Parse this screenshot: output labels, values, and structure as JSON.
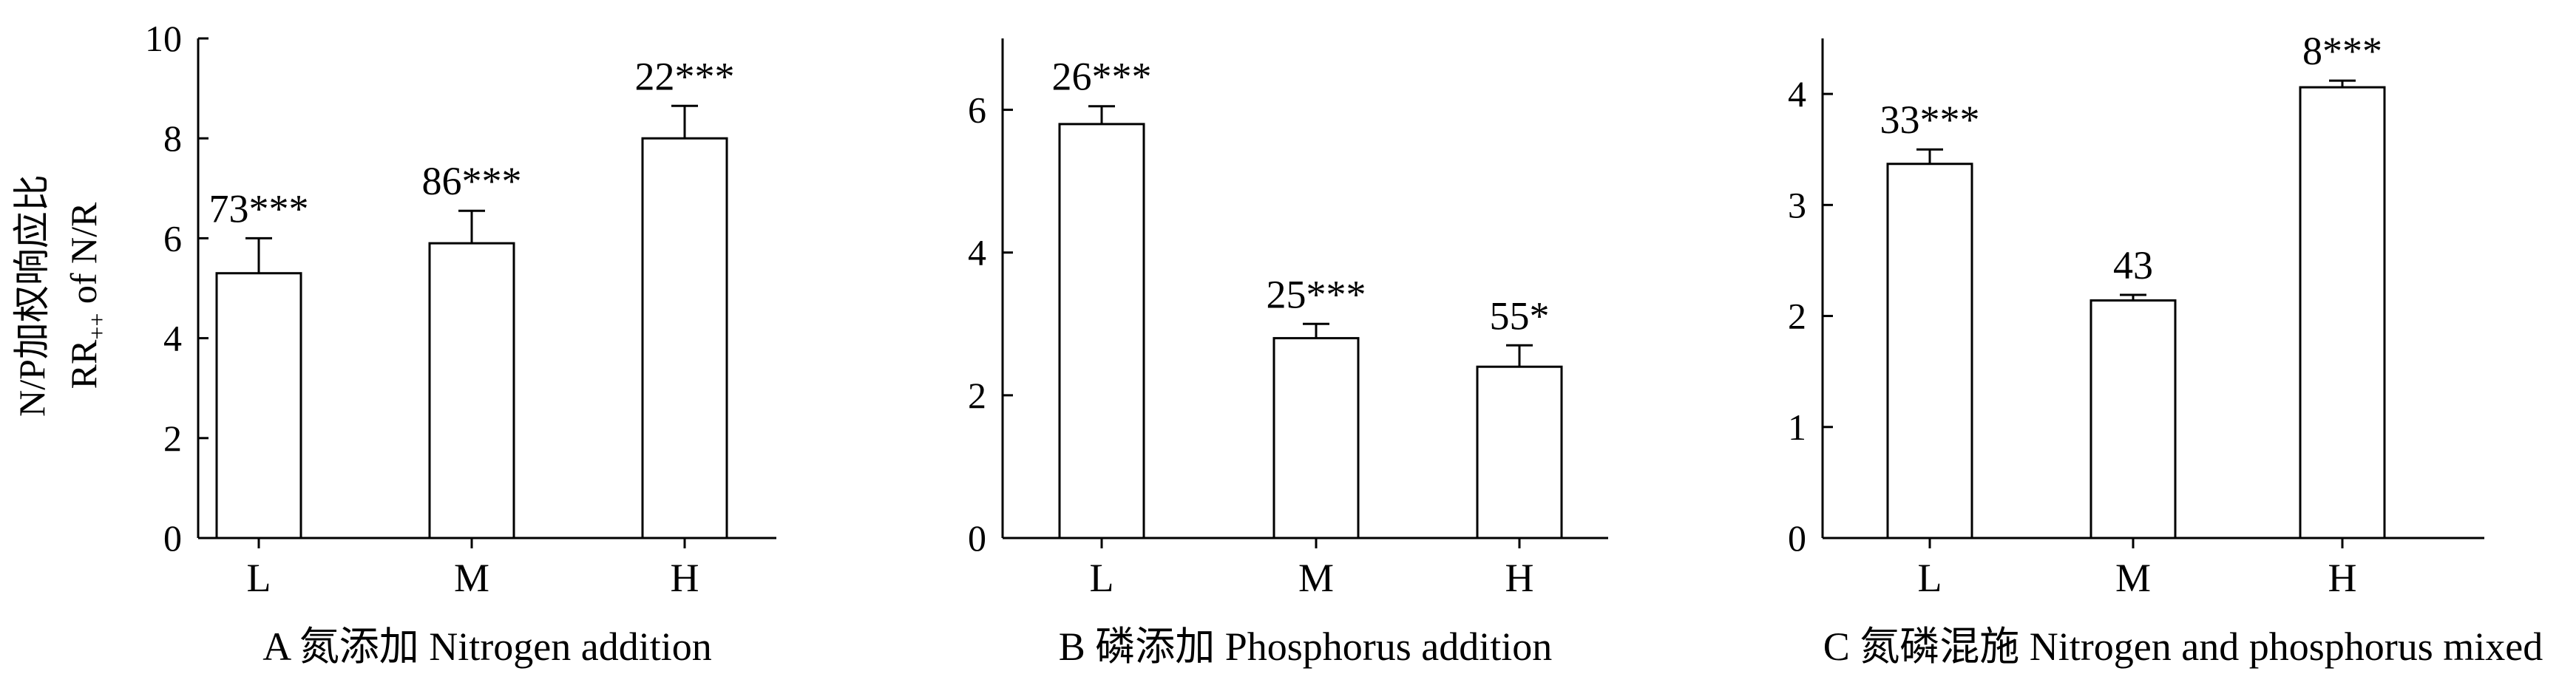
{
  "ylabel_cn": "N/P加权响应比",
  "ylabel_en": "RR++ of N/R",
  "chart_data": [
    {
      "type": "bar",
      "categories": [
        "L",
        "M",
        "H"
      ],
      "values": [
        5.3,
        5.9,
        8.0
      ],
      "errors": [
        0.7,
        0.65,
        0.65
      ],
      "annotations": [
        "73***",
        "86***",
        "22***"
      ],
      "xlabel": "A 氮添加 Nitrogen addition",
      "ylim": [
        0,
        10
      ],
      "yticks": [
        0,
        2,
        4,
        6,
        8,
        10
      ]
    },
    {
      "type": "bar",
      "categories": [
        "L",
        "M",
        "H"
      ],
      "values": [
        5.8,
        2.8,
        2.4
      ],
      "errors": [
        0.25,
        0.2,
        0.3
      ],
      "annotations": [
        "26***",
        "25***",
        "55*"
      ],
      "xlabel": "B 磷添加 Phosphorus addition",
      "ylim": [
        0,
        7
      ],
      "yticks": [
        0,
        2,
        4,
        6
      ]
    },
    {
      "type": "bar",
      "categories": [
        "L",
        "M",
        "H"
      ],
      "values": [
        3.37,
        2.14,
        4.06
      ],
      "errors": [
        0.13,
        0.05,
        0.06
      ],
      "annotations": [
        "33***",
        "43",
        "8***"
      ],
      "xlabel": "C 氮磷混施 Nitrogen and phosphorus mixed",
      "ylim": [
        0,
        4.5
      ],
      "yticks": [
        0,
        1,
        2,
        3,
        4
      ]
    }
  ]
}
